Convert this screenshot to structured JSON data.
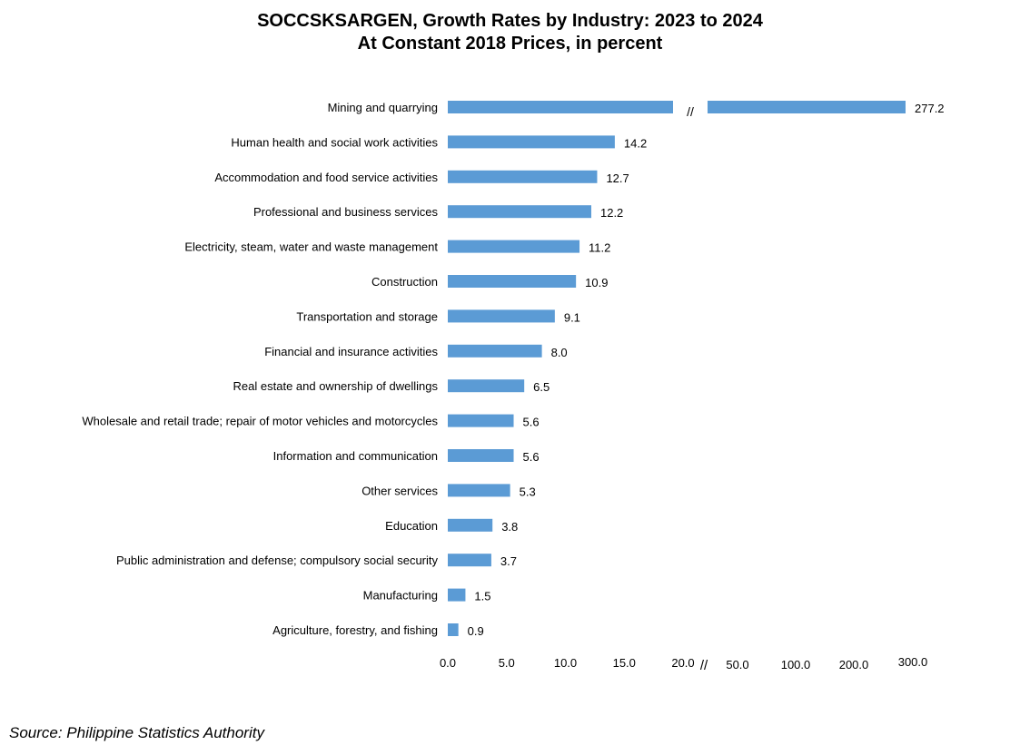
{
  "chart_data": {
    "type": "bar",
    "orientation": "horizontal",
    "title": "SOCCSKSARGEN, Growth Rates by Industry: 2023 to 2024",
    "subtitle": "At Constant 2018 Prices, in percent",
    "categories": [
      "Mining and quarrying",
      "Human health and social work activities",
      "Accommodation and food service activities",
      "Professional and business services",
      "Electricity, steam, water and waste management",
      "Construction",
      "Transportation and storage",
      "Financial and insurance activities",
      "Real estate and ownership of dwellings",
      "Wholesale and retail trade; repair of motor vehicles and motorcycles",
      "Information and communication",
      "Other services",
      "Education",
      "Public administration and defense; compulsory social security",
      "Manufacturing",
      "Agriculture, forestry, and fishing"
    ],
    "values": [
      277.2,
      14.2,
      12.7,
      12.2,
      11.2,
      10.9,
      9.1,
      8.0,
      6.5,
      5.6,
      5.6,
      5.3,
      3.8,
      3.7,
      1.5,
      0.9
    ],
    "value_labels": [
      "277.2",
      "14.2",
      "12.7",
      "12.2",
      "11.2",
      "10.9",
      "9.1",
      "8.0",
      "6.5",
      "5.6",
      "5.6",
      "5.3",
      "3.8",
      "3.7",
      "1.5",
      "0.9"
    ],
    "x_ticks_linear": [
      "0.0",
      "5.0",
      "10.0",
      "15.0",
      "20.0"
    ],
    "x_ticks_broken": [
      "50.0",
      "100.0",
      "200.0",
      "300.0"
    ],
    "axis_break_mark": "//",
    "xlim": [
      0,
      300
    ],
    "axis_break_after": 20,
    "bar_color": "#5B9BD5",
    "grid": false,
    "legend": "none"
  },
  "source_text": "Source: Philippine Statistics Authority"
}
